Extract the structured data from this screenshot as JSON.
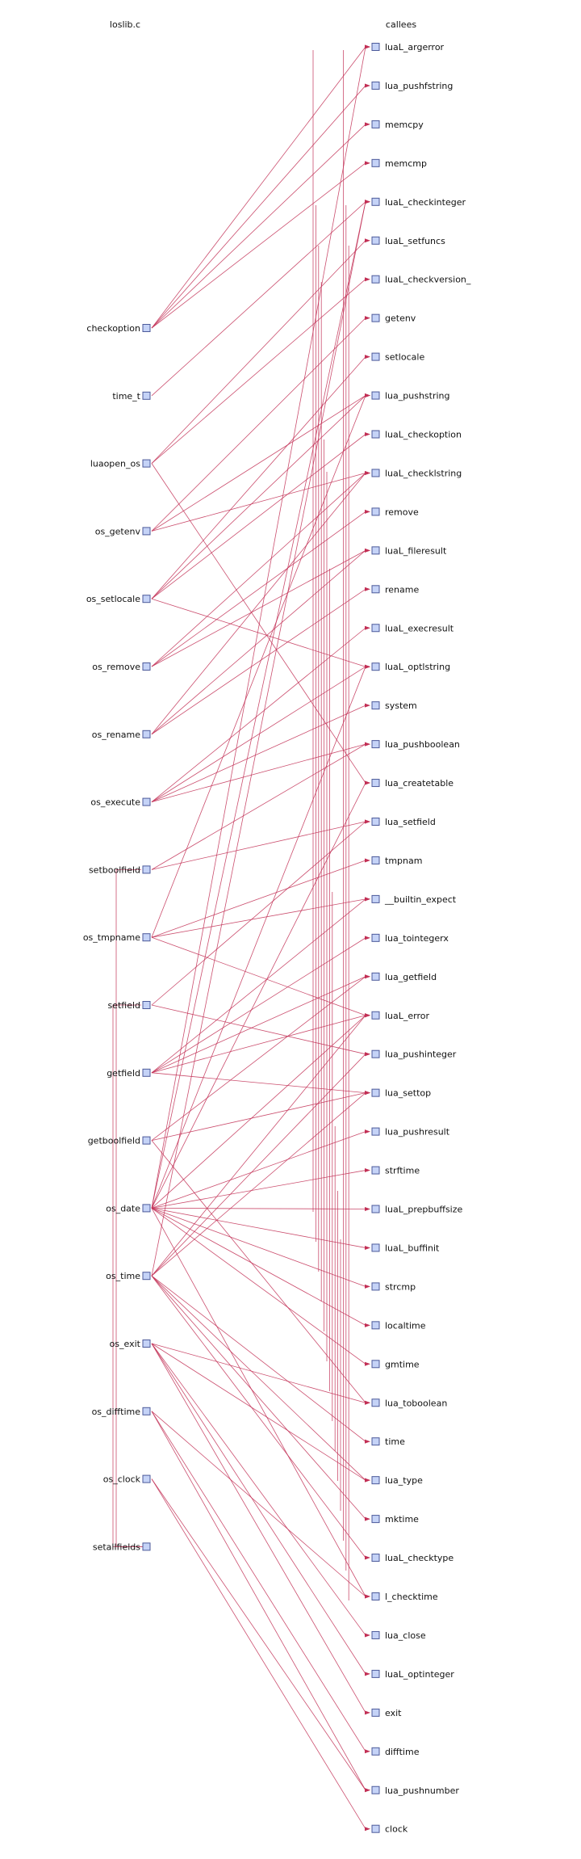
{
  "headers": {
    "left": "loslib.c",
    "right": "callees"
  },
  "colors": {
    "edge": "#c22f55",
    "node_fill": "#c5d3f7",
    "node_stroke": "#4c5a9a"
  },
  "callers": [
    "checkoption",
    "time_t",
    "luaopen_os",
    "os_getenv",
    "os_setlocale",
    "os_remove",
    "os_rename",
    "os_execute",
    "setboolfield",
    "os_tmpname",
    "setfield",
    "getfield",
    "getboolfield",
    "os_date",
    "os_time",
    "os_exit",
    "os_difftime",
    "os_clock",
    "setallfields"
  ],
  "callees": [
    "luaL_argerror",
    "lua_pushfstring",
    "memcpy",
    "memcmp",
    "luaL_checkinteger",
    "luaL_setfuncs",
    "luaL_checkversion_",
    "getenv",
    "setlocale",
    "lua_pushstring",
    "luaL_checkoption",
    "luaL_checklstring",
    "remove",
    "luaL_fileresult",
    "rename",
    "luaL_execresult",
    "luaL_optlstring",
    "system",
    "lua_pushboolean",
    "lua_createtable",
    "lua_setfield",
    "tmpnam",
    "__builtin_expect",
    "lua_tointegerx",
    "lua_getfield",
    "luaL_error",
    "lua_pushinteger",
    "lua_settop",
    "lua_pushresult",
    "strftime",
    "luaL_prepbuffsize",
    "luaL_buffinit",
    "strcmp",
    "localtime",
    "gmtime",
    "lua_toboolean",
    "time",
    "lua_type",
    "mktime",
    "luaL_checktype",
    "l_checktime",
    "lua_close",
    "luaL_optinteger",
    "exit",
    "difftime",
    "lua_pushnumber",
    "clock"
  ],
  "edges": [
    [
      "checkoption",
      "luaL_argerror"
    ],
    [
      "checkoption",
      "lua_pushfstring"
    ],
    [
      "checkoption",
      "memcpy"
    ],
    [
      "checkoption",
      "memcmp"
    ],
    [
      "time_t",
      "luaL_checkinteger"
    ],
    [
      "luaopen_os",
      "luaL_setfuncs"
    ],
    [
      "luaopen_os",
      "luaL_checkversion_"
    ],
    [
      "luaopen_os",
      "lua_createtable"
    ],
    [
      "os_getenv",
      "getenv"
    ],
    [
      "os_getenv",
      "lua_pushstring"
    ],
    [
      "os_getenv",
      "luaL_checklstring"
    ],
    [
      "os_setlocale",
      "setlocale"
    ],
    [
      "os_setlocale",
      "lua_pushstring"
    ],
    [
      "os_setlocale",
      "luaL_checkoption"
    ],
    [
      "os_setlocale",
      "luaL_optlstring"
    ],
    [
      "os_remove",
      "remove"
    ],
    [
      "os_remove",
      "luaL_fileresult"
    ],
    [
      "os_remove",
      "luaL_checklstring"
    ],
    [
      "os_rename",
      "rename"
    ],
    [
      "os_rename",
      "luaL_fileresult"
    ],
    [
      "os_rename",
      "luaL_checklstring"
    ],
    [
      "os_execute",
      "luaL_optlstring"
    ],
    [
      "os_execute",
      "system"
    ],
    [
      "os_execute",
      "luaL_execresult"
    ],
    [
      "os_execute",
      "lua_pushboolean"
    ],
    [
      "setboolfield",
      "lua_pushboolean"
    ],
    [
      "setboolfield",
      "lua_setfield"
    ],
    [
      "os_tmpname",
      "tmpnam"
    ],
    [
      "os_tmpname",
      "__builtin_expect"
    ],
    [
      "os_tmpname",
      "luaL_error"
    ],
    [
      "os_tmpname",
      "lua_pushstring"
    ],
    [
      "setfield",
      "lua_setfield"
    ],
    [
      "setfield",
      "lua_pushinteger"
    ],
    [
      "getfield",
      "lua_getfield"
    ],
    [
      "getfield",
      "lua_tointegerx"
    ],
    [
      "getfield",
      "luaL_error"
    ],
    [
      "getfield",
      "lua_settop"
    ],
    [
      "getfield",
      "__builtin_expect"
    ],
    [
      "getboolfield",
      "lua_getfield"
    ],
    [
      "getboolfield",
      "lua_toboolean"
    ],
    [
      "getboolfield",
      "lua_settop"
    ],
    [
      "os_date",
      "luaL_optlstring"
    ],
    [
      "os_date",
      "l_checktime"
    ],
    [
      "os_date",
      "luaL_checkinteger"
    ],
    [
      "os_date",
      "localtime"
    ],
    [
      "os_date",
      "gmtime"
    ],
    [
      "os_date",
      "luaL_error"
    ],
    [
      "os_date",
      "strcmp"
    ],
    [
      "os_date",
      "lua_createtable"
    ],
    [
      "os_date",
      "luaL_buffinit"
    ],
    [
      "os_date",
      "luaL_prepbuffsize"
    ],
    [
      "os_date",
      "strftime"
    ],
    [
      "os_date",
      "lua_pushresult"
    ],
    [
      "os_date",
      "luaL_argerror"
    ],
    [
      "os_time",
      "lua_type"
    ],
    [
      "os_time",
      "time"
    ],
    [
      "os_time",
      "luaL_checktype"
    ],
    [
      "os_time",
      "lua_settop"
    ],
    [
      "os_time",
      "mktime"
    ],
    [
      "os_time",
      "luaL_error"
    ],
    [
      "os_time",
      "lua_pushinteger"
    ],
    [
      "os_time",
      "luaL_checkinteger"
    ],
    [
      "os_exit",
      "lua_type"
    ],
    [
      "os_exit",
      "lua_toboolean"
    ],
    [
      "os_exit",
      "luaL_optinteger"
    ],
    [
      "os_exit",
      "lua_close"
    ],
    [
      "os_exit",
      "exit"
    ],
    [
      "os_difftime",
      "l_checktime"
    ],
    [
      "os_difftime",
      "difftime"
    ],
    [
      "os_difftime",
      "lua_pushnumber"
    ],
    [
      "os_clock",
      "clock"
    ],
    [
      "os_clock",
      "lua_pushnumber"
    ],
    [
      "setallfields",
      "setfield"
    ],
    [
      "setallfields",
      "setboolfield"
    ]
  ]
}
